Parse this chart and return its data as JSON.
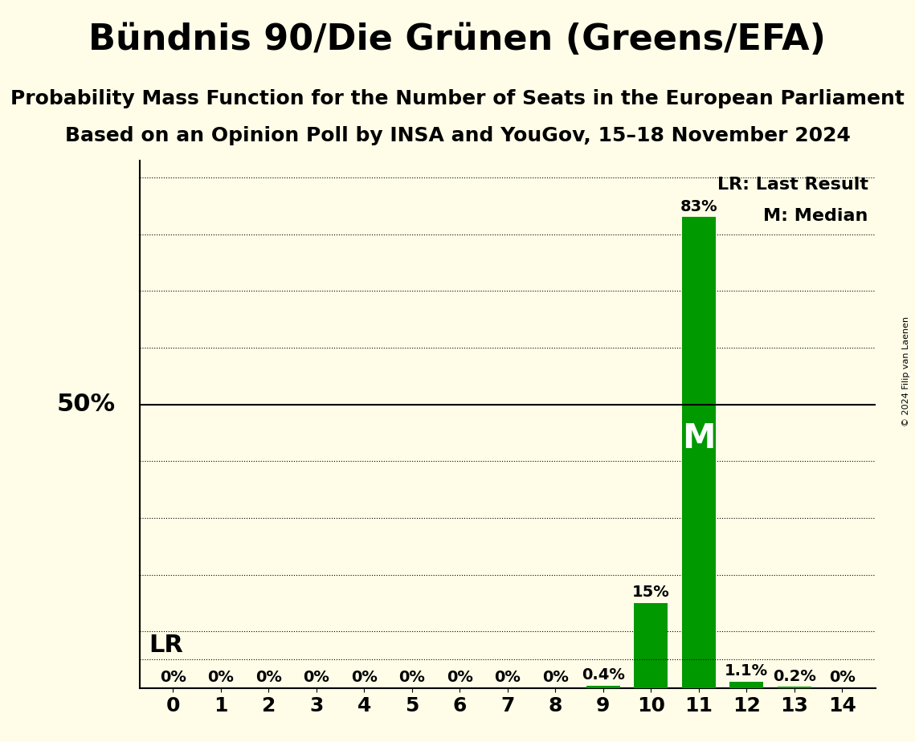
{
  "title": "Bündnis 90/Die Grünen (Greens/EFA)",
  "subtitle1": "Probability Mass Function for the Number of Seats in the European Parliament",
  "subtitle2": "Based on an Opinion Poll by INSA and YouGov, 15–18 November 2024",
  "copyright": "© 2024 Filip van Laenen",
  "categories": [
    0,
    1,
    2,
    3,
    4,
    5,
    6,
    7,
    8,
    9,
    10,
    11,
    12,
    13,
    14
  ],
  "values": [
    0.0,
    0.0,
    0.0,
    0.0,
    0.0,
    0.0,
    0.0,
    0.0,
    0.0,
    0.4,
    15.0,
    83.0,
    1.1,
    0.2,
    0.0
  ],
  "bar_labels": [
    "0%",
    "0%",
    "0%",
    "0%",
    "0%",
    "0%",
    "0%",
    "0%",
    "0%",
    "0.4%",
    "15%",
    "83%",
    "1.1%",
    "0.2%",
    "0%"
  ],
  "bar_color": "#009900",
  "background_color": "#FFFDE8",
  "ylabel_50": "50%",
  "lr_value": 5.0,
  "lr_seat": 11,
  "median_seat": 11,
  "ylim": [
    0,
    93
  ],
  "fifty_line": 50,
  "dotted_lines": [
    10,
    20,
    30,
    40,
    60,
    70,
    80,
    90
  ],
  "legend_lr": "LR: Last Result",
  "legend_m": "M: Median",
  "title_fontsize": 32,
  "subtitle_fontsize": 18,
  "label_fontsize": 14,
  "tick_fontsize": 18,
  "axis_label_fontsize": 22
}
